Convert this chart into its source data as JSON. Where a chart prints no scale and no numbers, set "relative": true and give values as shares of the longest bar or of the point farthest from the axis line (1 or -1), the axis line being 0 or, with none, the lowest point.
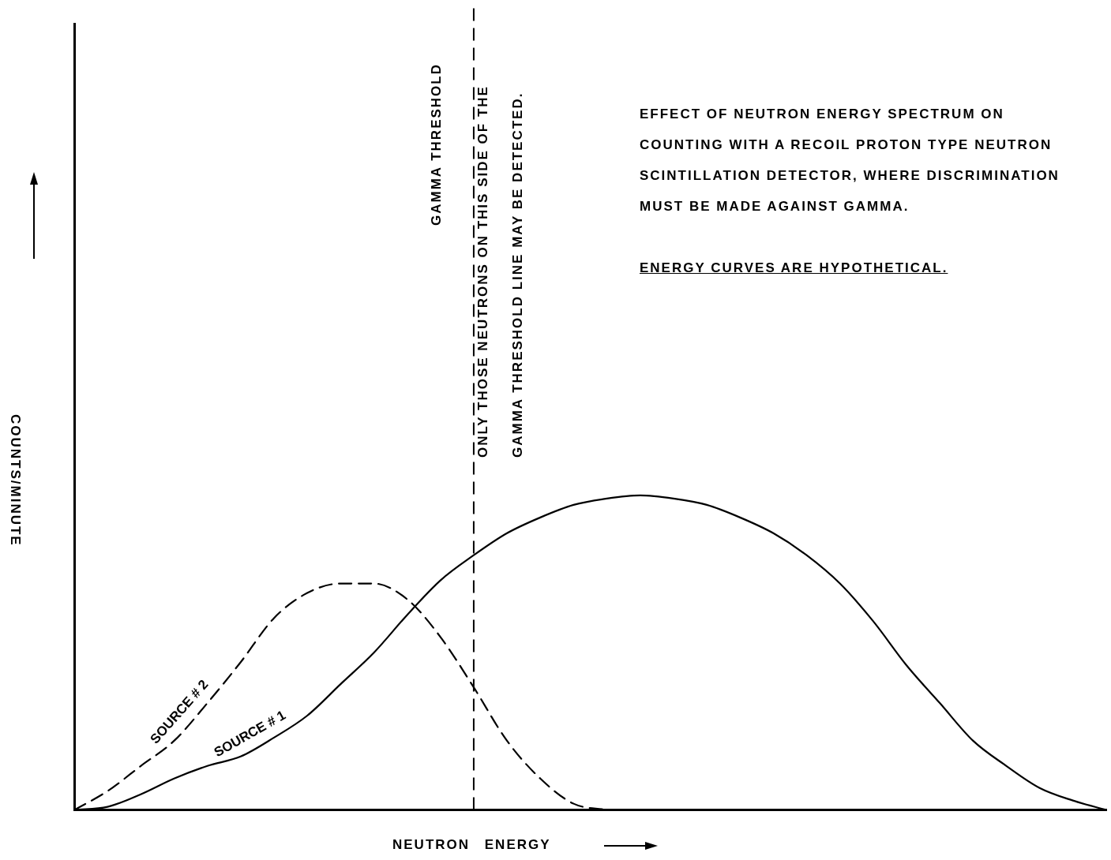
{
  "chart_data": {
    "type": "line",
    "relative": true,
    "xlabel": "NEUTRON ENERGY",
    "ylabel": "COUNTS/MINUTE",
    "categories": [
      null,
      null,
      null,
      null,
      null,
      null,
      null,
      null,
      null,
      null,
      null,
      null,
      null,
      null,
      null,
      null,
      null,
      null,
      null,
      null,
      null,
      null,
      null,
      null,
      null,
      null,
      null,
      null,
      null,
      null,
      null,
      null
    ],
    "series": [
      {
        "name": "SOURCE # 1",
        "color": "#000000",
        "line_style": "solid",
        "values": [
          0,
          0.01,
          0.05,
          0.1,
          0.14,
          0.17,
          0.23,
          0.3,
          0.4,
          0.5,
          0.62,
          0.73,
          0.81,
          0.88,
          0.93,
          0.97,
          0.99,
          1,
          0.99,
          0.97,
          0.93,
          0.88,
          0.81,
          0.72,
          0.6,
          0.46,
          0.34,
          0.22,
          0.14,
          0.07,
          0.03,
          0
        ]
      },
      {
        "name": "SOURCE # 2",
        "color": "#000000",
        "line_style": "dashed",
        "values": [
          0,
          0.06,
          0.14,
          0.22,
          0.34,
          0.47,
          0.61,
          0.69,
          0.72,
          0.72,
          0.67,
          0.55,
          0.39,
          0.22,
          0.1,
          0.02,
          0,
          null,
          null,
          null,
          null,
          null,
          null,
          null,
          null,
          null,
          null,
          null,
          null,
          null,
          null,
          null
        ]
      }
    ],
    "annotations": [
      "GAMMA THRESHOLD",
      "EFFECT OF NEUTRON ENERGY SPECTRUM ON COUNTING WITH A RECOIL PROTON TYPE NEUTRON SCINTILLATION DETECTOR, WHERE DISCRIMINATION MUST BE MADE AGAINST GAMMA.",
      "ENERGY CURVES ARE HYPOTHETICAL.",
      "ONLY THOSE NEUTRONS ON THIS SIDE OF THE GAMMA THRESHOLD LINE MAY BE DETECTED."
    ],
    "grid": false,
    "legend": false,
    "marker": "none"
  }
}
